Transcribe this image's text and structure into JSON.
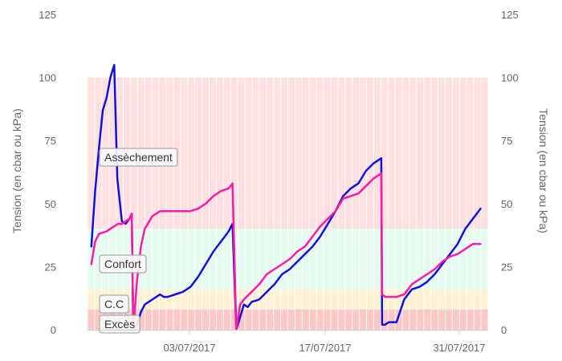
{
  "chart_data": {
    "type": "line",
    "ylabel_left": "Tension (en cbar ou kPa)",
    "ylabel_right": "Tension (en cbar ou kPa)",
    "ylim": [
      0,
      125
    ],
    "y_ticks": [
      "0",
      "25",
      "50",
      "75",
      "100",
      "125"
    ],
    "x_ticks": [
      "03/07/2017",
      "17/07/2017",
      "31/07/2017"
    ],
    "x_tick_days": [
      3,
      17,
      31
    ],
    "xlim_days": [
      -3.5,
      33
    ],
    "grid": "vertical-daily",
    "zones": [
      {
        "label": "Assèchement",
        "from": 40,
        "to": 100,
        "color": "#fde0e0"
      },
      {
        "label": "Confort",
        "from": 16,
        "to": 40,
        "color": "#e6fbf0"
      },
      {
        "label": "C.C",
        "from": 8,
        "to": 16,
        "color": "#fdf3d4"
      },
      {
        "label": "Excès",
        "from": 0,
        "to": 8,
        "color": "#fbc8c8"
      }
    ],
    "series": [
      {
        "color": "#1010e0",
        "points": [
          [
            -3.0,
            33
          ],
          [
            -2.5,
            55
          ],
          [
            -2.0,
            72
          ],
          [
            -1.5,
            87
          ],
          [
            -1.0,
            92
          ],
          [
            -0.5,
            100
          ],
          [
            0.0,
            105
          ],
          [
            0.4,
            60
          ],
          [
            1.0,
            43
          ],
          [
            1.5,
            42
          ],
          [
            2.0,
            44
          ],
          [
            2.3,
            46
          ],
          [
            2.5,
            0
          ],
          [
            3.0,
            2
          ],
          [
            3.5,
            7
          ],
          [
            4.0,
            10
          ],
          [
            5.0,
            12
          ],
          [
            6.0,
            14
          ],
          [
            6.5,
            13
          ],
          [
            7.0,
            13
          ],
          [
            8.0,
            14
          ],
          [
            9.0,
            15
          ],
          [
            10.0,
            17
          ],
          [
            11.0,
            21
          ],
          [
            12.0,
            26
          ],
          [
            13.0,
            31
          ],
          [
            14.0,
            35
          ],
          [
            15.0,
            39
          ],
          [
            15.5,
            42
          ],
          [
            16.0,
            0
          ],
          [
            16.5,
            5
          ],
          [
            17.0,
            10
          ],
          [
            17.5,
            9
          ],
          [
            18.0,
            11
          ],
          [
            19.0,
            12
          ],
          [
            20.0,
            15
          ],
          [
            21.0,
            18
          ],
          [
            22.0,
            22
          ],
          [
            23.0,
            24
          ],
          [
            24.0,
            27
          ],
          [
            25.0,
            30
          ],
          [
            26.0,
            33
          ],
          [
            27.0,
            37
          ],
          [
            28.0,
            42
          ],
          [
            29.0,
            47
          ],
          [
            30.0,
            53
          ],
          [
            31.0,
            56
          ],
          [
            32.0,
            58
          ],
          [
            33.0,
            63
          ],
          [
            34.0,
            66
          ],
          [
            35.0,
            68
          ],
          [
            35.1,
            2
          ],
          [
            35.5,
            2
          ],
          [
            36.0,
            3
          ],
          [
            37.0,
            3
          ],
          [
            38.0,
            12
          ],
          [
            39.0,
            16
          ],
          [
            40.0,
            17
          ],
          [
            41.0,
            19
          ],
          [
            42.0,
            22
          ],
          [
            43.0,
            26
          ],
          [
            44.0,
            30
          ],
          [
            45.0,
            34
          ],
          [
            46.0,
            40
          ],
          [
            47.0,
            44
          ],
          [
            48.0,
            48
          ]
        ]
      },
      {
        "color": "#ff1aa8",
        "points": [
          [
            -3.0,
            26
          ],
          [
            -2.5,
            35
          ],
          [
            -2.0,
            38
          ],
          [
            -1.0,
            39
          ],
          [
            0.0,
            41
          ],
          [
            0.5,
            42
          ],
          [
            1.0,
            42
          ],
          [
            1.5,
            43
          ],
          [
            2.0,
            44
          ],
          [
            2.3,
            46
          ],
          [
            2.5,
            0
          ],
          [
            3.0,
            20
          ],
          [
            3.5,
            33
          ],
          [
            4.0,
            40
          ],
          [
            5.0,
            45
          ],
          [
            6.0,
            47
          ],
          [
            7.0,
            47
          ],
          [
            8.0,
            47
          ],
          [
            9.0,
            47
          ],
          [
            10.0,
            47
          ],
          [
            11.0,
            48
          ],
          [
            12.0,
            50
          ],
          [
            13.0,
            53
          ],
          [
            14.0,
            55
          ],
          [
            15.0,
            56
          ],
          [
            15.5,
            58
          ],
          [
            16.0,
            0
          ],
          [
            16.5,
            10
          ],
          [
            17.0,
            12
          ],
          [
            18.0,
            15
          ],
          [
            19.0,
            18
          ],
          [
            20.0,
            22
          ],
          [
            21.0,
            24
          ],
          [
            22.0,
            26
          ],
          [
            23.0,
            28
          ],
          [
            24.0,
            31
          ],
          [
            25.0,
            33
          ],
          [
            26.0,
            37
          ],
          [
            27.0,
            41
          ],
          [
            28.0,
            44
          ],
          [
            29.0,
            47
          ],
          [
            30.0,
            52
          ],
          [
            31.0,
            53
          ],
          [
            32.0,
            54
          ],
          [
            33.0,
            57
          ],
          [
            34.0,
            60
          ],
          [
            35.0,
            62
          ],
          [
            35.1,
            14
          ],
          [
            35.5,
            13
          ],
          [
            36.0,
            13
          ],
          [
            37.0,
            13
          ],
          [
            38.0,
            14
          ],
          [
            39.0,
            18
          ],
          [
            40.0,
            20
          ],
          [
            41.0,
            22
          ],
          [
            42.0,
            24
          ],
          [
            43.0,
            27
          ],
          [
            44.0,
            29
          ],
          [
            45.0,
            30
          ],
          [
            46.0,
            32
          ],
          [
            47.0,
            34
          ],
          [
            48.0,
            34
          ]
        ]
      }
    ]
  }
}
